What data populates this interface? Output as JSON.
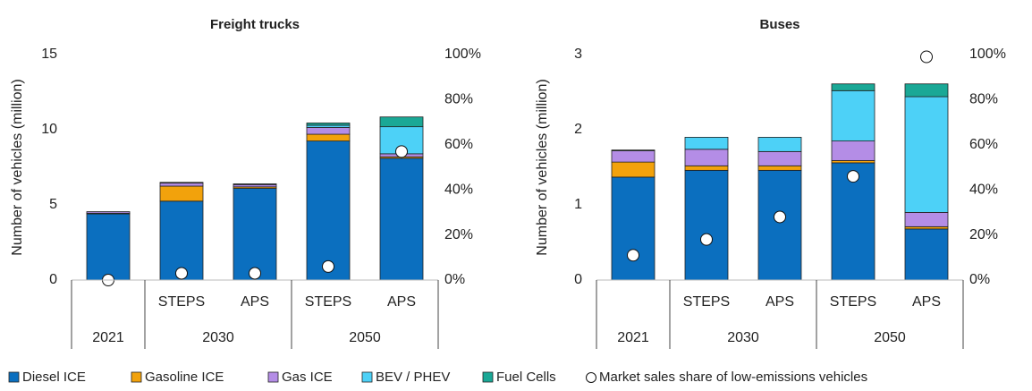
{
  "legend": [
    {
      "name": "Diesel ICE",
      "color": "#0b6fbf"
    },
    {
      "name": "Gasoline ICE",
      "color": "#f2a20c"
    },
    {
      "name": "Gas ICE",
      "color": "#b48de6"
    },
    {
      "name": "BEV / PHEV",
      "color": "#4dd1f7"
    },
    {
      "name": "Fuel Cells",
      "color": "#1aa896"
    },
    {
      "name": "Market sales share of low-emissions vehicles",
      "color": "#ffffff",
      "marker": "circle"
    }
  ],
  "chart_data": [
    {
      "type": "bar",
      "stacked": true,
      "title": "Freight trucks",
      "y_label": "Number of vehicles (million)",
      "categories": [
        null,
        "STEPS",
        "APS",
        "STEPS",
        "APS"
      ],
      "groups": [
        {
          "label": "2021",
          "size": 1
        },
        {
          "label": "2030",
          "size": 2
        },
        {
          "label": "2050",
          "size": 2
        }
      ],
      "ylim": [
        0,
        15
      ],
      "yticks": [
        0,
        5,
        10,
        15
      ],
      "y2lim": [
        0,
        100
      ],
      "y2ticks": [
        {
          "value": 0,
          "label": "0%"
        },
        {
          "value": 20,
          "label": "20%"
        },
        {
          "value": 40,
          "label": "40%"
        },
        {
          "value": 60,
          "label": "60%"
        },
        {
          "value": 80,
          "label": "80%"
        },
        {
          "value": 100,
          "label": "100%"
        }
      ],
      "series": [
        {
          "values": [
            4.4,
            5.25,
            6.1,
            9.25,
            8.1
          ]
        },
        {
          "values": [
            0.05,
            1.0,
            0.1,
            0.45,
            0.1
          ]
        },
        {
          "values": [
            0.1,
            0.2,
            0.15,
            0.45,
            0.2
          ]
        },
        {
          "values": [
            0,
            0.05,
            0.05,
            0.15,
            1.8
          ]
        },
        {
          "values": [
            0,
            0,
            0,
            0.15,
            0.65
          ]
        },
        {
          "axis": "y2",
          "values": [
            0,
            3,
            3,
            6,
            57
          ]
        }
      ]
    },
    {
      "type": "bar",
      "stacked": true,
      "title": "Buses",
      "y_label": "Number of vehicles (million)",
      "categories": [
        null,
        "STEPS",
        "APS",
        "STEPS",
        "APS"
      ],
      "groups": [
        {
          "label": "2021",
          "size": 1
        },
        {
          "label": "2030",
          "size": 2
        },
        {
          "label": "2050",
          "size": 2
        }
      ],
      "ylim": [
        0,
        3
      ],
      "yticks": [
        0,
        1,
        2,
        3
      ],
      "y2lim": [
        0,
        100
      ],
      "y2ticks": [
        {
          "value": 0,
          "label": "0%"
        },
        {
          "value": 20,
          "label": "20%"
        },
        {
          "value": 40,
          "label": "40%"
        },
        {
          "value": 60,
          "label": "60%"
        },
        {
          "value": 80,
          "label": "80%"
        },
        {
          "value": 100,
          "label": "100%"
        }
      ],
      "series": [
        {
          "values": [
            1.37,
            1.46,
            1.46,
            1.56,
            0.68
          ]
        },
        {
          "values": [
            0.2,
            0.06,
            0.06,
            0.03,
            0.03
          ]
        },
        {
          "values": [
            0.15,
            0.22,
            0.19,
            0.26,
            0.19
          ]
        },
        {
          "values": [
            0.01,
            0.16,
            0.19,
            0.67,
            1.54
          ]
        },
        {
          "values": [
            0,
            0,
            0,
            0.09,
            0.17
          ]
        },
        {
          "axis": "y2",
          "values": [
            11,
            18,
            28,
            46,
            99
          ]
        }
      ]
    }
  ]
}
